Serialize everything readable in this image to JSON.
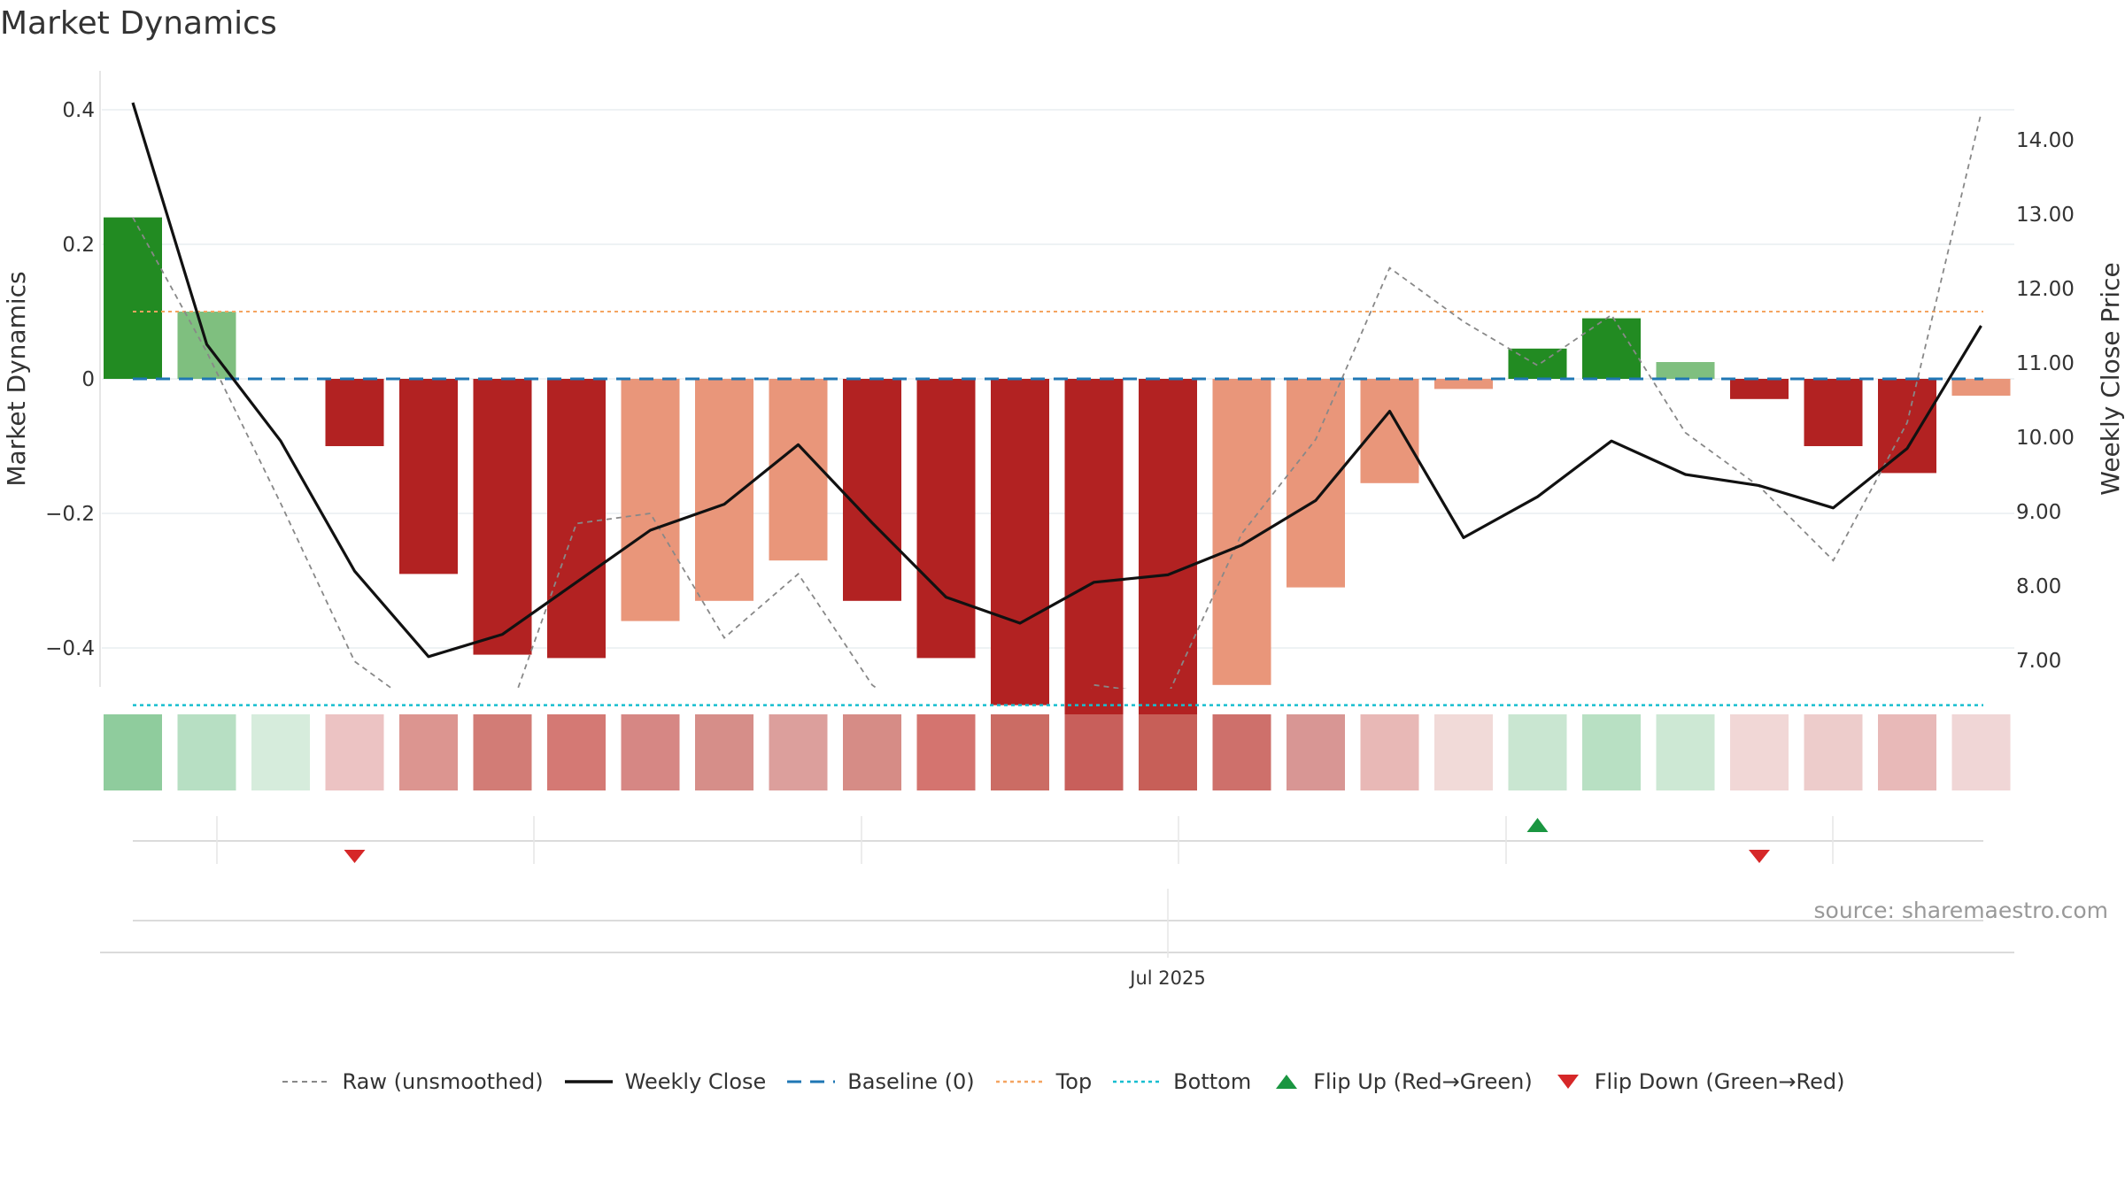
{
  "title": "Market Dynamics",
  "source": "source: sharemaestro.com",
  "colors": {
    "strong_green": "#228b22",
    "light_green": "#7fbf7f",
    "strong_red": "#b22222",
    "light_red": "#e9967a",
    "close_line": "#111111",
    "raw_line": "#888888",
    "baseline": "#1f77b4",
    "top": "#f4a460",
    "bottom": "#17becf",
    "flip_up": "#1a9641",
    "flip_down": "#d62728",
    "grid": "#e8eef0"
  },
  "legend": [
    {
      "label": "Raw (unsmoothed)",
      "icon": "dashed-gray-line"
    },
    {
      "label": "Weekly Close",
      "icon": "solid-black-line"
    },
    {
      "label": "Baseline (0)",
      "icon": "dashed-blue-line"
    },
    {
      "label": "Top",
      "icon": "dotted-orange-line"
    },
    {
      "label": "Bottom",
      "icon": "dotted-cyan-line"
    },
    {
      "label": "Flip Up (Red→Green)",
      "icon": "green-triangle-up"
    },
    {
      "label": "Flip Down (Green→Red)",
      "icon": "red-triangle-down"
    }
  ],
  "chart_data": {
    "type": "bar",
    "title": "Market Dynamics",
    "ylabel": "Market Dynamics",
    "y2label": "Weekly Close Price",
    "ylim": [
      -0.57,
      0.57
    ],
    "y2lim": [
      6.65,
      15.05
    ],
    "yticks": [
      {
        "value": 0.4,
        "label": "0.4"
      },
      {
        "value": 0.2,
        "label": "0.2"
      },
      {
        "value": 0,
        "label": "0"
      },
      {
        "value": -0.2,
        "label": "−0.2"
      },
      {
        "value": -0.4,
        "label": "−0.4"
      }
    ],
    "y2ticks": [
      {
        "value": 14,
        "label": "14.00"
      },
      {
        "value": 13,
        "label": "13.00"
      },
      {
        "value": 12,
        "label": "12.00"
      },
      {
        "value": 11,
        "label": "11.00"
      },
      {
        "value": 10,
        "label": "10.00"
      },
      {
        "value": 9,
        "label": "9.00"
      },
      {
        "value": 8,
        "label": "8.00"
      },
      {
        "value": 7,
        "label": "7.00"
      }
    ],
    "xtick_label": "Jul 2025",
    "xtick_index": 14.5,
    "bars": [
      {
        "value": 0.24,
        "kind": "strong_green"
      },
      {
        "value": 0.1,
        "kind": "light_green"
      },
      {
        "value": 0,
        "kind": "none"
      },
      {
        "value": -0.1,
        "kind": "strong_red"
      },
      {
        "value": -0.29,
        "kind": "strong_red"
      },
      {
        "value": -0.41,
        "kind": "strong_red"
      },
      {
        "value": -0.415,
        "kind": "strong_red"
      },
      {
        "value": -0.36,
        "kind": "light_red"
      },
      {
        "value": -0.33,
        "kind": "light_red"
      },
      {
        "value": -0.27,
        "kind": "light_red"
      },
      {
        "value": -0.33,
        "kind": "strong_red"
      },
      {
        "value": -0.415,
        "kind": "strong_red"
      },
      {
        "value": -0.485,
        "kind": "strong_red"
      },
      {
        "value": -0.525,
        "kind": "strong_red"
      },
      {
        "value": -0.53,
        "kind": "strong_red"
      },
      {
        "value": -0.455,
        "kind": "light_red"
      },
      {
        "value": -0.31,
        "kind": "light_red"
      },
      {
        "value": -0.155,
        "kind": "light_red"
      },
      {
        "value": -0.015,
        "kind": "light_red"
      },
      {
        "value": 0.045,
        "kind": "strong_green"
      },
      {
        "value": 0.09,
        "kind": "strong_green"
      },
      {
        "value": 0.025,
        "kind": "light_green"
      },
      {
        "value": -0.03,
        "kind": "strong_red"
      },
      {
        "value": -0.1,
        "kind": "strong_red"
      },
      {
        "value": -0.14,
        "kind": "strong_red"
      },
      {
        "value": -0.025,
        "kind": "light_red"
      }
    ],
    "weekly_close": [
      {
        "x": 0.4,
        "y": 14.5
      },
      {
        "x": 1.4,
        "y": 11.25
      },
      {
        "x": 2.4,
        "y": 9.95
      },
      {
        "x": 3.4,
        "y": 8.2
      },
      {
        "x": 4.4,
        "y": 7.05
      },
      {
        "x": 5.4,
        "y": 7.35
      },
      {
        "x": 6.4,
        "y": 8.05
      },
      {
        "x": 7.4,
        "y": 8.75
      },
      {
        "x": 8.4,
        "y": 9.1
      },
      {
        "x": 9.4,
        "y": 9.9
      },
      {
        "x": 10.4,
        "y": 8.85
      },
      {
        "x": 11.4,
        "y": 7.85
      },
      {
        "x": 12.4,
        "y": 7.5
      },
      {
        "x": 13.4,
        "y": 8.05
      },
      {
        "x": 14.4,
        "y": 8.15
      },
      {
        "x": 15.4,
        "y": 8.55
      },
      {
        "x": 16.4,
        "y": 9.15
      },
      {
        "x": 17.4,
        "y": 10.35
      },
      {
        "x": 18.4,
        "y": 8.65
      },
      {
        "x": 19.4,
        "y": 9.2
      },
      {
        "x": 20.4,
        "y": 9.95
      },
      {
        "x": 21.4,
        "y": 9.5
      },
      {
        "x": 22.4,
        "y": 9.35
      },
      {
        "x": 23.4,
        "y": 9.05
      },
      {
        "x": 24.4,
        "y": 9.85
      },
      {
        "x": 25.4,
        "y": 11.5
      }
    ],
    "raw": [
      {
        "x": 0.4,
        "y": 0.24
      },
      {
        "x": 1.4,
        "y": 0.04
      },
      {
        "x": 2.4,
        "y": -0.185
      },
      {
        "x": 3.4,
        "y": -0.42
      },
      {
        "x": 4.4,
        "y": -0.5
      },
      {
        "x": 5.4,
        "y": -0.525
      },
      {
        "x": 6.4,
        "y": -0.215
      },
      {
        "x": 7.4,
        "y": -0.2
      },
      {
        "x": 8.4,
        "y": -0.385
      },
      {
        "x": 9.4,
        "y": -0.29
      },
      {
        "x": 10.4,
        "y": -0.455
      },
      {
        "x": 11.4,
        "y": -0.535
      },
      {
        "x": 12.4,
        "y": -0.65
      },
      {
        "x": 13.4,
        "y": -0.455
      },
      {
        "x": 14.4,
        "y": -0.47
      },
      {
        "x": 15.4,
        "y": -0.23
      },
      {
        "x": 16.4,
        "y": -0.09
      },
      {
        "x": 17.4,
        "y": 0.165
      },
      {
        "x": 18.4,
        "y": 0.085
      },
      {
        "x": 19.4,
        "y": 0.02
      },
      {
        "x": 20.4,
        "y": 0.095
      },
      {
        "x": 21.4,
        "y": -0.08
      },
      {
        "x": 22.4,
        "y": -0.16
      },
      {
        "x": 23.4,
        "y": -0.27
      },
      {
        "x": 24.4,
        "y": -0.065
      },
      {
        "x": 25.4,
        "y": 0.395
      }
    ],
    "baseline": 0,
    "top_line": 0.1,
    "bottom_line": -0.485,
    "strip_colors": [
      "#8fcc9d",
      "#b7dfc3",
      "#d6ecdc",
      "#ecc3c3",
      "#dc9590",
      "#d27c76",
      "#d47974",
      "#d68784",
      "#d68e89",
      "#dc9f9c",
      "#d68c86",
      "#d4746f",
      "#cb6c64",
      "#c85f5b",
      "#c75f58",
      "#ce706b",
      "#d89694",
      "#e8b8b6",
      "#f1dad8",
      "#c9e6d1",
      "#b8e0c3",
      "#cde8d4",
      "#f1d7d6",
      "#edcccb",
      "#e8b9b8",
      "#f0d6d6"
    ],
    "flips": [
      {
        "index": 3,
        "direction": "down"
      },
      {
        "index": 19,
        "direction": "up"
      },
      {
        "index": 22,
        "direction": "down"
      }
    ]
  }
}
